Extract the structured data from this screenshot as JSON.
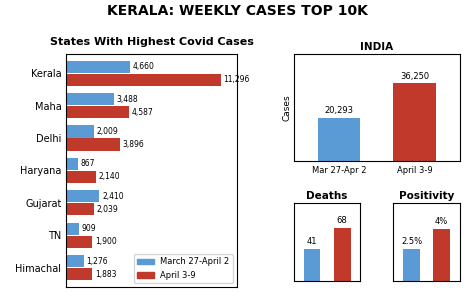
{
  "chart_data": [
    {
      "type": "bar",
      "orientation": "horizontal",
      "title": "KERALA: WEEKLY CASES TOP 10K",
      "subtitle": "States With Highest Covid Cases",
      "categories": [
        "Kerala",
        "Maha",
        "Delhi",
        "Haryana",
        "Gujarat",
        "TN",
        "Himachal"
      ],
      "series": [
        {
          "name": "March 27-April 2",
          "color": "#5b9bd5",
          "values": [
            4660,
            3488,
            2009,
            867,
            2410,
            909,
            1276
          ],
          "value_labels": [
            "4,660",
            "3,488",
            "2,009",
            "867",
            "2,410",
            "909",
            "1,276"
          ]
        },
        {
          "name": "April 3-9",
          "color": "#c0392b",
          "values": [
            11296,
            4587,
            3896,
            2140,
            2039,
            1900,
            1883
          ],
          "value_labels": [
            "11,296",
            "4,587",
            "3,896",
            "2,140",
            "2,039",
            "1,900",
            "1,883"
          ]
        }
      ],
      "xlim": [
        0,
        12500
      ],
      "data_labels": true,
      "tick_labels": "y",
      "legend": "lower right",
      "grid": false
    },
    {
      "type": "bar",
      "title": "INDIA",
      "y_label": "Cases",
      "categories": [
        "Mar 27-Apr 2",
        "April 3-9"
      ],
      "values": [
        20293,
        36250
      ],
      "value_labels": [
        "20,293",
        "36,250"
      ],
      "colors": [
        "#5b9bd5",
        "#c0392b"
      ],
      "ylim": [
        0,
        50000
      ],
      "data_labels": true,
      "tick_labels": "x",
      "grid": false
    },
    {
      "type": "bar",
      "title": "Deaths",
      "categories": [
        null,
        null
      ],
      "values": [
        41,
        68
      ],
      "colors": [
        "#5b9bd5",
        "#c0392b"
      ],
      "ylim": [
        0,
        100
      ],
      "data_labels": true,
      "tick_labels": false,
      "grid": false
    },
    {
      "type": "bar",
      "title": "Positivity",
      "categories": [
        null,
        null
      ],
      "values": [
        2.5,
        4
      ],
      "value_labels": [
        "2.5%",
        "4%"
      ],
      "colors": [
        "#5b9bd5",
        "#c0392b"
      ],
      "ylim": [
        0,
        6
      ],
      "data_labels": true,
      "tick_labels": false,
      "grid": false
    }
  ]
}
